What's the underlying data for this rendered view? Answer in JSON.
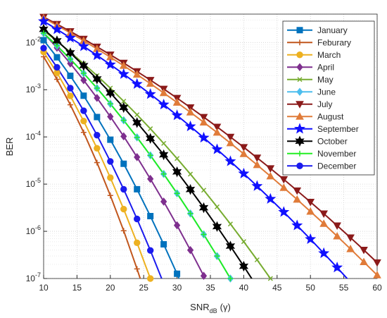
{
  "chart_data": {
    "type": "line",
    "xlabel": {
      "text": "SNR",
      "sub": "dB",
      "suffix": "(γ)"
    },
    "ylabel": "BER",
    "xlim": [
      10,
      60
    ],
    "xticks": [
      10,
      15,
      20,
      25,
      30,
      35,
      40,
      45,
      50,
      55,
      60
    ],
    "ylim": [
      1e-07,
      0.04
    ],
    "log_y": true,
    "grid": true,
    "minor_grid": true,
    "legend": "northeast",
    "yticks": [
      {
        "value": 1e-07,
        "label": "10",
        "exponent": "-7"
      },
      {
        "value": 1e-06,
        "label": "10",
        "exponent": "-6"
      },
      {
        "value": 1e-05,
        "label": "10",
        "exponent": "-5"
      },
      {
        "value": 0.0001,
        "label": "10",
        "exponent": "-4"
      },
      {
        "value": 0.001,
        "label": "10",
        "exponent": "-3"
      },
      {
        "value": 0.01,
        "label": "10",
        "exponent": "-2"
      }
    ],
    "series": [
      {
        "name": "January",
        "color": "#0072bd",
        "marker": "square",
        "x": [
          10,
          12,
          14,
          16,
          18,
          20,
          22,
          24,
          26,
          28,
          30,
          32
        ],
        "values": [
          0.0112,
          0.00486,
          0.00197,
          0.000746,
          0.000264,
          8.73e-05,
          2.7e-05,
          7.78e-06,
          2.1e-06,
          5.3e-07,
          1.26e-07,
          2.75e-08
        ]
      },
      {
        "name": "Feburary",
        "color": "#c1561c",
        "marker": "plus",
        "x": [
          10,
          12,
          14,
          16,
          18,
          20,
          22,
          24,
          26
        ],
        "values": [
          0.005,
          0.00166,
          0.00048,
          0.000125,
          2.85e-05,
          5.75e-06,
          1.03e-06,
          1.6e-07,
          2.25e-08
        ]
      },
      {
        "name": "March",
        "color": "#edb120",
        "marker": "circle",
        "x": [
          10,
          12,
          14,
          16,
          18,
          20,
          22,
          24,
          26,
          28
        ],
        "values": [
          0.00631,
          0.00228,
          0.000741,
          0.000217,
          5.75e-05,
          1.37e-05,
          2.95e-06,
          5.71e-07,
          1e-07,
          1.58e-08
        ]
      },
      {
        "name": "April",
        "color": "#7e2f8e",
        "marker": "diamond",
        "x": [
          10,
          12,
          14,
          16,
          18,
          20,
          22,
          24,
          26,
          28,
          30,
          32,
          34,
          36
        ],
        "values": [
          0.0158,
          0.00774,
          0.0036,
          0.00159,
          0.00067,
          0.000269,
          0.000103,
          3.73e-05,
          1.29e-05,
          4.26e-06,
          1.34e-06,
          4e-07,
          1.14e-07,
          3.09e-08
        ]
      },
      {
        "name": "May",
        "color": "#77ac30",
        "marker": "x",
        "x": [
          10,
          12,
          14,
          16,
          18,
          20,
          22,
          24,
          26,
          28,
          30,
          32,
          34,
          36,
          38,
          40,
          42,
          44,
          46
        ],
        "values": [
          0.0178,
          0.0107,
          0.00625,
          0.00356,
          0.00199,
          0.00108,
          0.000571,
          0.000295,
          0.000149,
          7.29e-05,
          3.49e-05,
          1.63e-05,
          7.43e-06,
          3.3e-06,
          1.43e-06,
          6.04e-07,
          2.49e-07,
          1e-07,
          3.92e-08
        ]
      },
      {
        "name": "June",
        "color": "#4dbeee",
        "marker": "diamond",
        "x": [
          10,
          12,
          14,
          16,
          18,
          20,
          22,
          24,
          26,
          28,
          30,
          32,
          34,
          36,
          38,
          40
        ],
        "values": [
          0.0158,
          0.00855,
          0.00445,
          0.00223,
          0.00108,
          0.000502,
          0.000225,
          9.77e-05,
          4.07e-05,
          1.64e-05,
          6.37e-06,
          2.38e-06,
          8.59e-07,
          2.99e-07,
          1e-07,
          3.23e-08
        ]
      },
      {
        "name": "July",
        "color": "#8b1a1a",
        "marker": "triangle-down",
        "x": [
          10,
          12,
          14,
          16,
          18,
          20,
          22,
          24,
          26,
          28,
          30,
          32,
          34,
          36,
          38,
          40,
          42,
          44,
          46,
          48,
          50,
          52,
          54,
          56,
          58,
          60
        ],
        "values": [
          0.0347,
          0.0245,
          0.0172,
          0.0119,
          0.00813,
          0.00551,
          0.00369,
          0.00244,
          0.0016,
          0.00104,
          0.000664,
          0.00042,
          0.000263,
          0.000163,
          9.98e-05,
          6.04e-05,
          3.61e-05,
          2.15e-05,
          1.26e-05,
          7.28e-06,
          4.18e-06,
          2.37e-06,
          1.32e-06,
          7.35e-07,
          4.03e-07,
          2.18e-07
        ]
      },
      {
        "name": "August",
        "color": "#e07b39",
        "marker": "triangle-up",
        "x": [
          10,
          12,
          14,
          16,
          18,
          20,
          22,
          24,
          26,
          28,
          30,
          32,
          34,
          36,
          38,
          40,
          42,
          44,
          46,
          48,
          50,
          52,
          54,
          56,
          58,
          60
        ],
        "values": [
          0.0331,
          0.0231,
          0.016,
          0.0109,
          0.00735,
          0.0049,
          0.00323,
          0.0021,
          0.00135,
          0.000855,
          0.000537,
          0.000333,
          0.000204,
          0.000124,
          7.4e-05,
          4.37e-05,
          2.55e-05,
          1.47e-05,
          8.39e-06,
          4.73e-06,
          2.63e-06,
          1.45e-06,
          7.87e-07,
          4.23e-07,
          2.24e-07,
          1.18e-07
        ]
      },
      {
        "name": "September",
        "color": "#1010ff",
        "marker": "star5",
        "x": [
          10,
          12,
          14,
          16,
          18,
          20,
          22,
          24,
          26,
          28,
          30,
          32,
          34,
          36,
          38,
          40,
          42,
          44,
          46,
          48,
          50,
          52,
          54,
          56
        ],
        "values": [
          0.0282,
          0.019,
          0.0126,
          0.0083,
          0.00535,
          0.00341,
          0.00214,
          0.00132,
          0.000805,
          0.000484,
          0.000286,
          0.000167,
          9.62e-05,
          5.45e-05,
          3.04e-05,
          1.67e-05,
          9.08e-06,
          4.85e-06,
          2.56e-06,
          1.33e-06,
          6.81e-07,
          3.43e-07,
          1.71e-07,
          8.36e-08
        ]
      },
      {
        "name": "October",
        "color": "#000000",
        "marker": "star6",
        "x": [
          10,
          12,
          14,
          16,
          18,
          20,
          22,
          24,
          26,
          28,
          30,
          32,
          34,
          36,
          38,
          40,
          42
        ],
        "values": [
          0.0191,
          0.0109,
          0.00603,
          0.00324,
          0.00169,
          0.000857,
          0.000421,
          0.000201,
          9.29e-05,
          4.18e-05,
          1.82e-05,
          7.69e-06,
          3.16e-06,
          1.26e-06,
          4.86e-07,
          1.82e-07,
          6.65e-08
        ]
      },
      {
        "name": "November",
        "color": "#22ee22",
        "marker": "plus",
        "x": [
          10,
          12,
          14,
          16,
          18,
          20,
          22,
          24,
          26,
          28,
          30,
          32,
          34,
          36,
          38,
          40
        ],
        "values": [
          0.0158,
          0.00855,
          0.00445,
          0.00223,
          0.00108,
          0.000502,
          0.000225,
          9.77e-05,
          4.07e-05,
          1.64e-05,
          6.37e-06,
          2.38e-06,
          8.59e-07,
          2.99e-07,
          1e-07,
          3.23e-08
        ]
      },
      {
        "name": "December",
        "color": "#1a1aee",
        "marker": "circle",
        "x": [
          10,
          12,
          14,
          16,
          18,
          20,
          22,
          24,
          26,
          28
        ],
        "values": [
          0.00759,
          0.00299,
          0.00108,
          0.000358,
          0.000109,
          3.03e-05,
          7.78e-06,
          1.83e-06,
          3.94e-07,
          7.8e-08
        ]
      }
    ]
  }
}
